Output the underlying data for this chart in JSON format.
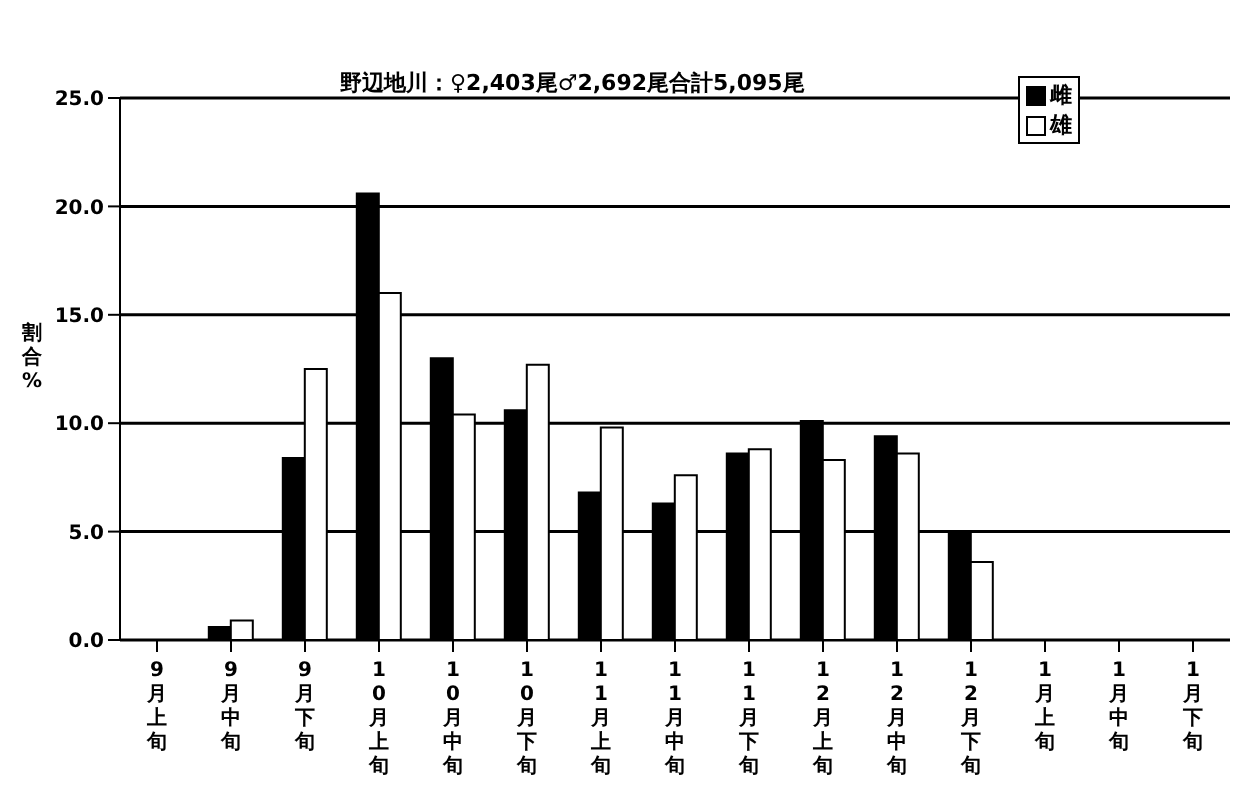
{
  "chart_data": {
    "type": "bar",
    "title": "野辺地川：♀2,403尾♂2,692尾合計5,095尾",
    "ylabel": "割合%",
    "categories": [
      "9月上旬",
      "9月中旬",
      "9月下旬",
      "10月上旬",
      "10月中旬",
      "10月下旬",
      "11月上旬",
      "11月中旬",
      "11月下旬",
      "12月上旬",
      "12月中旬",
      "12月下旬",
      "1月上旬",
      "1月中旬",
      "1月下旬"
    ],
    "series": [
      {
        "name": "雌",
        "color": "#000000",
        "values": [
          0,
          0.6,
          8.4,
          20.6,
          13.0,
          10.6,
          6.8,
          6.3,
          8.6,
          10.1,
          9.4,
          5.0,
          0,
          0,
          0
        ]
      },
      {
        "name": "雄",
        "color": "#ffffff",
        "values": [
          0,
          0.9,
          12.5,
          16.0,
          10.4,
          12.7,
          9.8,
          7.6,
          8.8,
          8.3,
          8.6,
          3.6,
          0,
          0,
          0
        ]
      }
    ],
    "ylim": [
      0,
      25
    ],
    "yticks": [
      {
        "value": 0,
        "label": "0.0"
      },
      {
        "value": 5,
        "label": "5.0"
      },
      {
        "value": 10,
        "label": "10.0"
      },
      {
        "value": 15,
        "label": "15.0"
      },
      {
        "value": 20,
        "label": "20.0"
      },
      {
        "value": 25,
        "label": "25.0"
      }
    ],
    "grid": "y",
    "legend": "top right"
  }
}
